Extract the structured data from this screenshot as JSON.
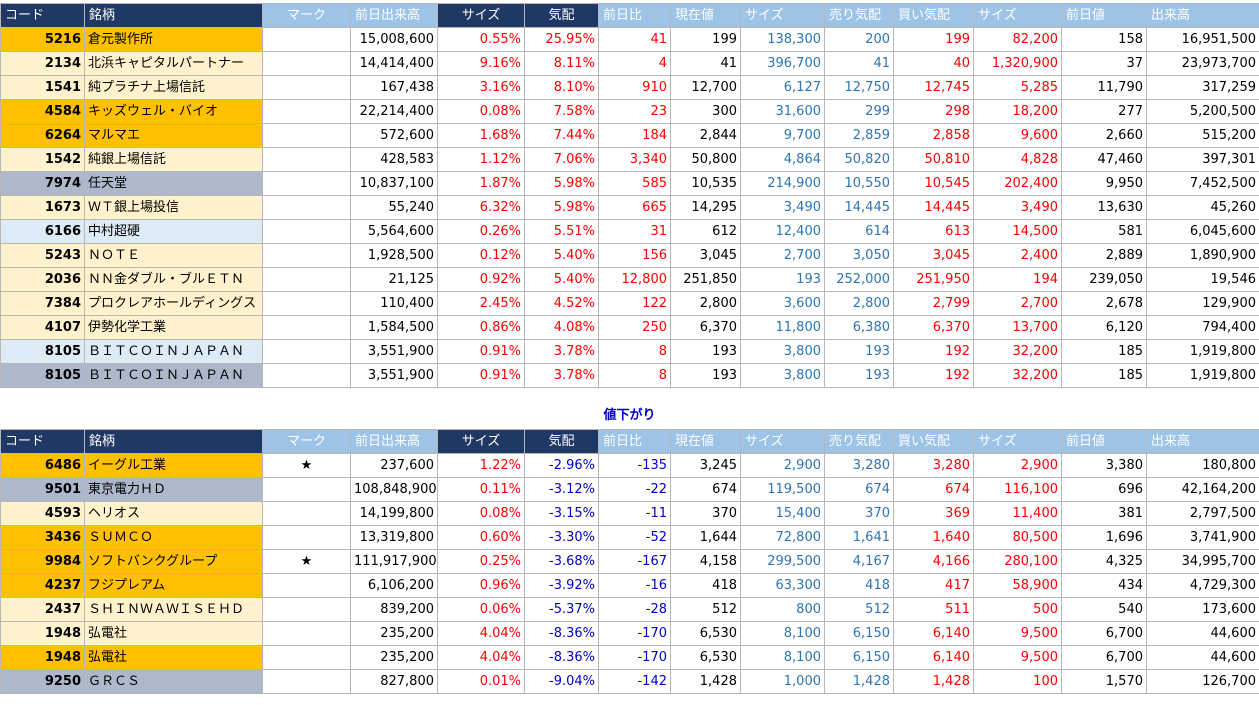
{
  "headers": [
    "コード",
    "銘柄",
    "マーク",
    "前日出来高",
    "サイズ",
    "気配",
    "前日比",
    "現在値",
    "サイズ",
    "売り気配",
    "買い気配",
    "サイズ",
    "前日値",
    "出来高"
  ],
  "section_down_title": "値下がり",
  "colors": {
    "gold": "#ffc000",
    "cream": "#fff2cc",
    "gray": "#adb9ca",
    "light_blue": "#ddebf7",
    "red": "#ff0000",
    "blue": "#2e75b6",
    "header_navy": "#1f3864",
    "header_light": "#9dc3e6"
  },
  "up_rows": [
    {
      "bg": "gold",
      "code": "5216",
      "name": "倉元製作所",
      "mark": "",
      "prev_volume": "15,008,600",
      "size_pct": "0.55%",
      "quote_pct": "25.95%",
      "change": "41",
      "price": "199",
      "size1": "138,300",
      "ask": "200",
      "bid": "199",
      "size2": "82,200",
      "prev_price": "158",
      "volume": "16,951,500"
    },
    {
      "bg": "cream",
      "code": "2134",
      "name": "北浜キャピタルパートナー",
      "mark": "",
      "prev_volume": "14,414,400",
      "size_pct": "9.16%",
      "quote_pct": "8.11%",
      "change": "4",
      "price": "41",
      "size1": "396,700",
      "ask": "41",
      "bid": "40",
      "size2": "1,320,900",
      "prev_price": "37",
      "volume": "23,973,700"
    },
    {
      "bg": "cream",
      "code": "1541",
      "name": "純プラチナ上場信託",
      "mark": "",
      "prev_volume": "167,438",
      "size_pct": "3.16%",
      "quote_pct": "8.10%",
      "change": "910",
      "price": "12,700",
      "size1": "6,127",
      "ask": "12,750",
      "bid": "12,745",
      "size2": "5,285",
      "prev_price": "11,790",
      "volume": "317,259"
    },
    {
      "bg": "gold",
      "code": "4584",
      "name": "キッズウェル・バイオ",
      "mark": "",
      "prev_volume": "22,214,400",
      "size_pct": "0.08%",
      "quote_pct": "7.58%",
      "change": "23",
      "price": "300",
      "size1": "31,600",
      "ask": "299",
      "bid": "298",
      "size2": "18,200",
      "prev_price": "277",
      "volume": "5,200,500"
    },
    {
      "bg": "gold",
      "code": "6264",
      "name": "マルマエ",
      "mark": "",
      "prev_volume": "572,600",
      "size_pct": "1.68%",
      "quote_pct": "7.44%",
      "change": "184",
      "price": "2,844",
      "size1": "9,700",
      "ask": "2,859",
      "bid": "2,858",
      "size2": "9,600",
      "prev_price": "2,660",
      "volume": "515,200"
    },
    {
      "bg": "cream",
      "code": "1542",
      "name": "純銀上場信託",
      "mark": "",
      "prev_volume": "428,583",
      "size_pct": "1.12%",
      "quote_pct": "7.06%",
      "change": "3,340",
      "price": "50,800",
      "size1": "4,864",
      "ask": "50,820",
      "bid": "50,810",
      "size2": "4,828",
      "prev_price": "47,460",
      "volume": "397,301"
    },
    {
      "bg": "gray",
      "code": "7974",
      "name": "任天堂",
      "mark": "",
      "prev_volume": "10,837,100",
      "size_pct": "1.87%",
      "quote_pct": "5.98%",
      "change": "585",
      "price": "10,535",
      "size1": "214,900",
      "ask": "10,550",
      "bid": "10,545",
      "size2": "202,400",
      "prev_price": "9,950",
      "volume": "7,452,500"
    },
    {
      "bg": "cream",
      "code": "1673",
      "name": "ＷＴ銀上場投信",
      "mark": "",
      "prev_volume": "55,240",
      "size_pct": "6.32%",
      "quote_pct": "5.98%",
      "change": "665",
      "price": "14,295",
      "size1": "3,490",
      "ask": "14,445",
      "bid": "14,445",
      "size2": "3,490",
      "prev_price": "13,630",
      "volume": "45,260"
    },
    {
      "bg": "lblue",
      "code": "6166",
      "name": "中村超硬",
      "mark": "",
      "prev_volume": "5,564,600",
      "size_pct": "0.26%",
      "quote_pct": "5.51%",
      "change": "31",
      "price": "612",
      "size1": "12,400",
      "ask": "614",
      "bid": "613",
      "size2": "14,500",
      "prev_price": "581",
      "volume": "6,045,600"
    },
    {
      "bg": "cream",
      "code": "5243",
      "name": "ＮＯＴＥ",
      "mark": "",
      "prev_volume": "1,928,500",
      "size_pct": "0.12%",
      "quote_pct": "5.40%",
      "change": "156",
      "price": "3,045",
      "size1": "2,700",
      "ask": "3,050",
      "bid": "3,045",
      "size2": "2,400",
      "prev_price": "2,889",
      "volume": "1,890,900"
    },
    {
      "bg": "cream",
      "code": "2036",
      "name": "ＮＮ金ダブル・ブルＥＴＮ",
      "mark": "",
      "prev_volume": "21,125",
      "size_pct": "0.92%",
      "quote_pct": "5.40%",
      "change": "12,800",
      "price": "251,850",
      "size1": "193",
      "ask": "252,000",
      "bid": "251,950",
      "size2": "194",
      "prev_price": "239,050",
      "volume": "19,546"
    },
    {
      "bg": "cream",
      "code": "7384",
      "name": "プロクレアホールディングス",
      "mark": "",
      "prev_volume": "110,400",
      "size_pct": "2.45%",
      "quote_pct": "4.52%",
      "change": "122",
      "price": "2,800",
      "size1": "3,600",
      "ask": "2,800",
      "bid": "2,799",
      "size2": "2,700",
      "prev_price": "2,678",
      "volume": "129,900"
    },
    {
      "bg": "cream",
      "code": "4107",
      "name": "伊勢化学工業",
      "mark": "",
      "prev_volume": "1,584,500",
      "size_pct": "0.86%",
      "quote_pct": "4.08%",
      "change": "250",
      "price": "6,370",
      "size1": "11,800",
      "ask": "6,380",
      "bid": "6,370",
      "size2": "13,700",
      "prev_price": "6,120",
      "volume": "794,400"
    },
    {
      "bg": "lblue",
      "code": "8105",
      "name": "ＢＩＴＣＯＩＮＪＡＰＡＮ",
      "mark": "",
      "prev_volume": "3,551,900",
      "size_pct": "0.91%",
      "quote_pct": "3.78%",
      "change": "8",
      "price": "193",
      "size1": "3,800",
      "ask": "193",
      "bid": "192",
      "size2": "32,200",
      "prev_price": "185",
      "volume": "1,919,800"
    },
    {
      "bg": "gray",
      "code": "8105",
      "name": "ＢＩＴＣＯＩＮＪＡＰＡＮ",
      "mark": "",
      "prev_volume": "3,551,900",
      "size_pct": "0.91%",
      "quote_pct": "3.78%",
      "change": "8",
      "price": "193",
      "size1": "3,800",
      "ask": "193",
      "bid": "192",
      "size2": "32,200",
      "prev_price": "185",
      "volume": "1,919,800"
    }
  ],
  "down_rows": [
    {
      "bg": "gold",
      "code": "6486",
      "name": "イーグル工業",
      "mark": "★",
      "prev_volume": "237,600",
      "size_pct": "1.22%",
      "quote_pct": "-2.96%",
      "change": "-135",
      "price": "3,245",
      "size1": "2,900",
      "ask": "3,280",
      "bid": "3,280",
      "size2": "2,900",
      "prev_price": "3,380",
      "volume": "180,800"
    },
    {
      "bg": "gray",
      "code": "9501",
      "name": "東京電力ＨＤ",
      "mark": "",
      "prev_volume": "108,848,900",
      "size_pct": "0.11%",
      "quote_pct": "-3.12%",
      "change": "-22",
      "price": "674",
      "size1": "119,500",
      "ask": "674",
      "bid": "674",
      "size2": "116,100",
      "prev_price": "696",
      "volume": "42,164,200"
    },
    {
      "bg": "cream",
      "code": "4593",
      "name": "ヘリオス",
      "mark": "",
      "prev_volume": "14,199,800",
      "size_pct": "0.08%",
      "quote_pct": "-3.15%",
      "change": "-11",
      "price": "370",
      "size1": "15,400",
      "ask": "370",
      "bid": "369",
      "size2": "11,400",
      "prev_price": "381",
      "volume": "2,797,500"
    },
    {
      "bg": "gold",
      "code": "3436",
      "name": "ＳＵＭＣＯ",
      "mark": "",
      "prev_volume": "13,319,800",
      "size_pct": "0.60%",
      "quote_pct": "-3.30%",
      "change": "-52",
      "price": "1,644",
      "size1": "72,800",
      "ask": "1,641",
      "bid": "1,640",
      "size2": "80,500",
      "prev_price": "1,696",
      "volume": "3,741,900"
    },
    {
      "bg": "gold",
      "code": "9984",
      "name": "ソフトバンクグループ",
      "mark": "★",
      "prev_volume": "111,917,900",
      "size_pct": "0.25%",
      "quote_pct": "-3.68%",
      "change": "-167",
      "price": "4,158",
      "size1": "299,500",
      "ask": "4,167",
      "bid": "4,166",
      "size2": "280,100",
      "prev_price": "4,325",
      "volume": "34,995,700"
    },
    {
      "bg": "gold",
      "code": "4237",
      "name": "フジプレアム",
      "mark": "",
      "prev_volume": "6,106,200",
      "size_pct": "0.96%",
      "quote_pct": "-3.92%",
      "change": "-16",
      "price": "418",
      "size1": "63,300",
      "ask": "418",
      "bid": "417",
      "size2": "58,900",
      "prev_price": "434",
      "volume": "4,729,300"
    },
    {
      "bg": "cream",
      "code": "2437",
      "name": "ＳＨＩＮＷＡＷＩＳＥＨＤ",
      "mark": "",
      "prev_volume": "839,200",
      "size_pct": "0.06%",
      "quote_pct": "-5.37%",
      "change": "-28",
      "price": "512",
      "size1": "800",
      "ask": "512",
      "bid": "511",
      "size2": "500",
      "prev_price": "540",
      "volume": "173,600"
    },
    {
      "bg": "cream",
      "code": "1948",
      "name": "弘電社",
      "mark": "",
      "prev_volume": "235,200",
      "size_pct": "4.04%",
      "quote_pct": "-8.36%",
      "change": "-170",
      "price": "6,530",
      "size1": "8,100",
      "ask": "6,150",
      "bid": "6,140",
      "size2": "9,500",
      "prev_price": "6,700",
      "volume": "44,600"
    },
    {
      "bg": "gold",
      "code": "1948",
      "name": "弘電社",
      "mark": "",
      "prev_volume": "235,200",
      "size_pct": "4.04%",
      "quote_pct": "-8.36%",
      "change": "-170",
      "price": "6,530",
      "size1": "8,100",
      "ask": "6,150",
      "bid": "6,140",
      "size2": "9,500",
      "prev_price": "6,700",
      "volume": "44,600"
    },
    {
      "bg": "gray",
      "code": "9250",
      "name": "ＧＲＣＳ",
      "mark": "",
      "prev_volume": "827,800",
      "size_pct": "0.01%",
      "quote_pct": "-9.04%",
      "change": "-142",
      "price": "1,428",
      "size1": "1,000",
      "ask": "1,428",
      "bid": "1,428",
      "size2": "100",
      "prev_price": "1,570",
      "volume": "126,700"
    }
  ]
}
